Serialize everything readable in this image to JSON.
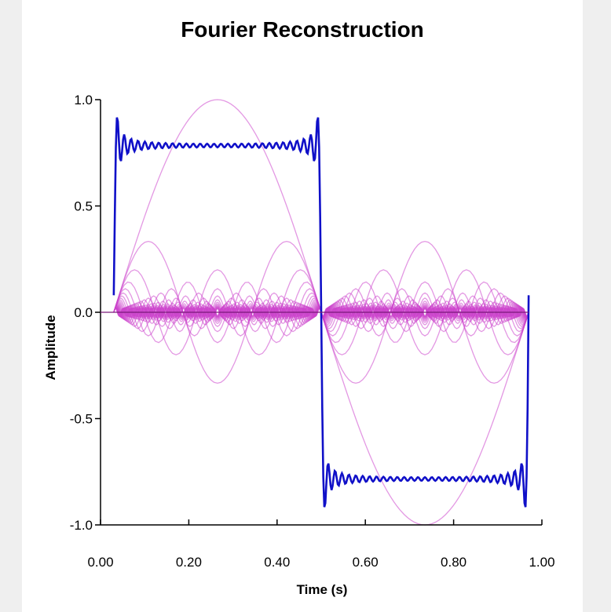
{
  "title": "Fourier Reconstruction",
  "chart_data": {
    "type": "line",
    "title": "Fourier Reconstruction",
    "xlabel": "Time (s)",
    "ylabel": "Amplitude",
    "xlim": [
      0,
      1
    ],
    "ylim": [
      -1,
      1
    ],
    "x_ticks": [
      "0.00",
      "0.20",
      "0.40",
      "0.60",
      "0.80",
      "1.00"
    ],
    "x_tick_values": [
      0,
      0.2,
      0.4,
      0.6,
      0.8,
      1.0
    ],
    "y_ticks": [
      "1.0",
      "0.5",
      "0.0",
      "-0.5",
      "-1.0"
    ],
    "y_tick_values": [
      1.0,
      0.5,
      0.0,
      -0.5,
      -1.0
    ],
    "grid": false,
    "legend": "none",
    "signal": {
      "x_range": [
        0.03,
        0.97
      ],
      "harmonics": "odd sine harmonics k = 1, 3, 5, ... 59, amplitude 1/k",
      "sum_line": {
        "color": "#1010c8",
        "description": "partial Fourier sum of a square wave"
      },
      "component_lines": {
        "color": "#cc44cc"
      }
    },
    "series": [
      {
        "values": [
          [
            0.03,
            0.08
          ],
          [
            0.04,
            0.93
          ],
          [
            0.06,
            0.82
          ],
          [
            0.26,
            0.8
          ],
          [
            0.49,
            0.93
          ],
          [
            0.5,
            0.0
          ],
          [
            0.51,
            -0.93
          ],
          [
            0.53,
            -0.82
          ],
          [
            0.73,
            -0.8
          ],
          [
            0.96,
            -0.93
          ],
          [
            0.97,
            0.08
          ]
        ]
      }
    ]
  }
}
